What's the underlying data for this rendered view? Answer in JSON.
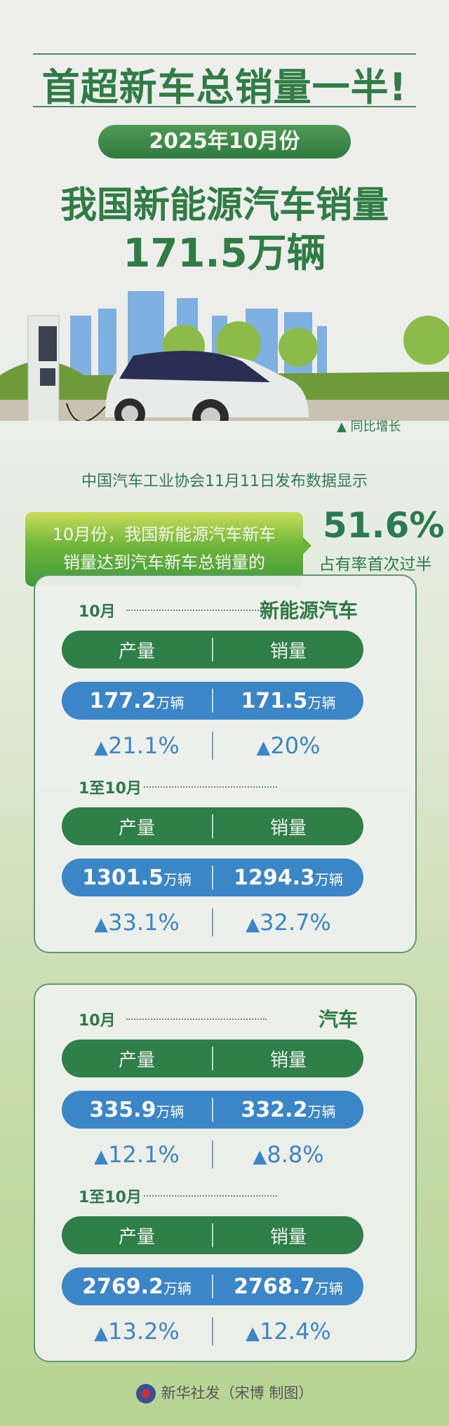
{
  "title": "首超新车总销量一半!",
  "date_pill": "2025年10月份",
  "headline": "我国新能源汽车销量",
  "headline_value": "171.5万辆",
  "legend": "▲ 同比增长",
  "source": "中国汽车工业协会11月11日发布数据显示",
  "callout": {
    "line1": "10月份，我国新能源汽车新车",
    "line2": "销量达到汽车新车总销量的",
    "value": "51.6%",
    "caption": "占有率首次过半"
  },
  "panels": [
    {
      "category": "新能源汽车",
      "sections": [
        {
          "period": "10月",
          "headers": [
            "产量",
            "销量"
          ],
          "values": [
            {
              "num": "177.2",
              "unit": "万辆"
            },
            {
              "num": "171.5",
              "unit": "万辆"
            }
          ],
          "growth": [
            "21.1%",
            "20%"
          ]
        },
        {
          "period": "1至10月",
          "headers": [
            "产量",
            "销量"
          ],
          "values": [
            {
              "num": "1301.5",
              "unit": "万辆"
            },
            {
              "num": "1294.3",
              "unit": "万辆"
            }
          ],
          "growth": [
            "33.1%",
            "32.7%"
          ]
        }
      ]
    },
    {
      "category": "汽车",
      "sections": [
        {
          "period": "10月",
          "headers": [
            "产量",
            "销量"
          ],
          "values": [
            {
              "num": "335.9",
              "unit": "万辆"
            },
            {
              "num": "332.2",
              "unit": "万辆"
            }
          ],
          "growth": [
            "12.1%",
            "8.8%"
          ]
        },
        {
          "period": "1至10月",
          "headers": [
            "产量",
            "销量"
          ],
          "values": [
            {
              "num": "2769.2",
              "unit": "万辆"
            },
            {
              "num": "2768.7",
              "unit": "万辆"
            }
          ],
          "growth": [
            "13.2%",
            "12.4%"
          ]
        }
      ]
    }
  ],
  "footer": "新华社发（宋博 制图）",
  "icons": {
    "growth": "triangle-up-icon",
    "logo": "xinhua-logo"
  },
  "colors": {
    "green": "#2f7f48",
    "blue": "#3a86c6",
    "title_green": "#2f7d44"
  }
}
